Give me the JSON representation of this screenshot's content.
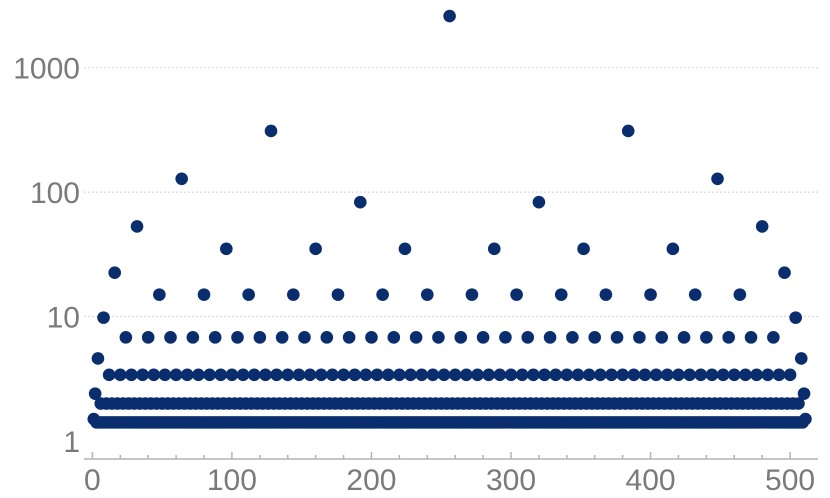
{
  "chart_data": {
    "type": "scatter",
    "title": "",
    "xlabel": "",
    "ylabel": "",
    "xlim": [
      -6,
      520
    ],
    "ylim": [
      0.8,
      3500
    ],
    "y_scale": "log",
    "grid": "horizontal",
    "marker_color": "#0a2d6e",
    "x_ticks": [
      0,
      100,
      200,
      300,
      400,
      500
    ],
    "x_tick_labels": [
      "0",
      "100",
      "200",
      "300",
      "400",
      "500"
    ],
    "y_ticks": [
      1,
      10,
      100,
      1000
    ],
    "y_tick_labels": [
      "1",
      "10",
      "100",
      "1000"
    ],
    "x_range": [
      1,
      511
    ],
    "level_values": [
      1.41,
      1.5,
      2,
      2.4,
      3.4,
      4.6,
      6.8,
      9.8,
      15,
      22.5,
      35,
      53,
      83,
      128,
      310,
      2600
    ],
    "exceptional_points": [
      {
        "x": 1,
        "y": 1.5
      },
      {
        "x": 2,
        "y": 2.4
      },
      {
        "x": 4,
        "y": 4.6
      },
      {
        "x": 8,
        "y": 9.8
      },
      {
        "x": 16,
        "y": 22.5
      },
      {
        "x": 32,
        "y": 53
      },
      {
        "x": 64,
        "y": 128
      },
      {
        "x": 128,
        "y": 310
      },
      {
        "x": 256,
        "y": 2600
      },
      {
        "x": 384,
        "y": 310
      },
      {
        "x": 448,
        "y": 128
      },
      {
        "x": 480,
        "y": 53
      },
      {
        "x": 496,
        "y": 22.5
      },
      {
        "x": 504,
        "y": 9.8
      },
      {
        "x": 508,
        "y": 4.6
      },
      {
        "x": 510,
        "y": 2.4
      },
      {
        "x": 511,
        "y": 1.5
      }
    ]
  }
}
